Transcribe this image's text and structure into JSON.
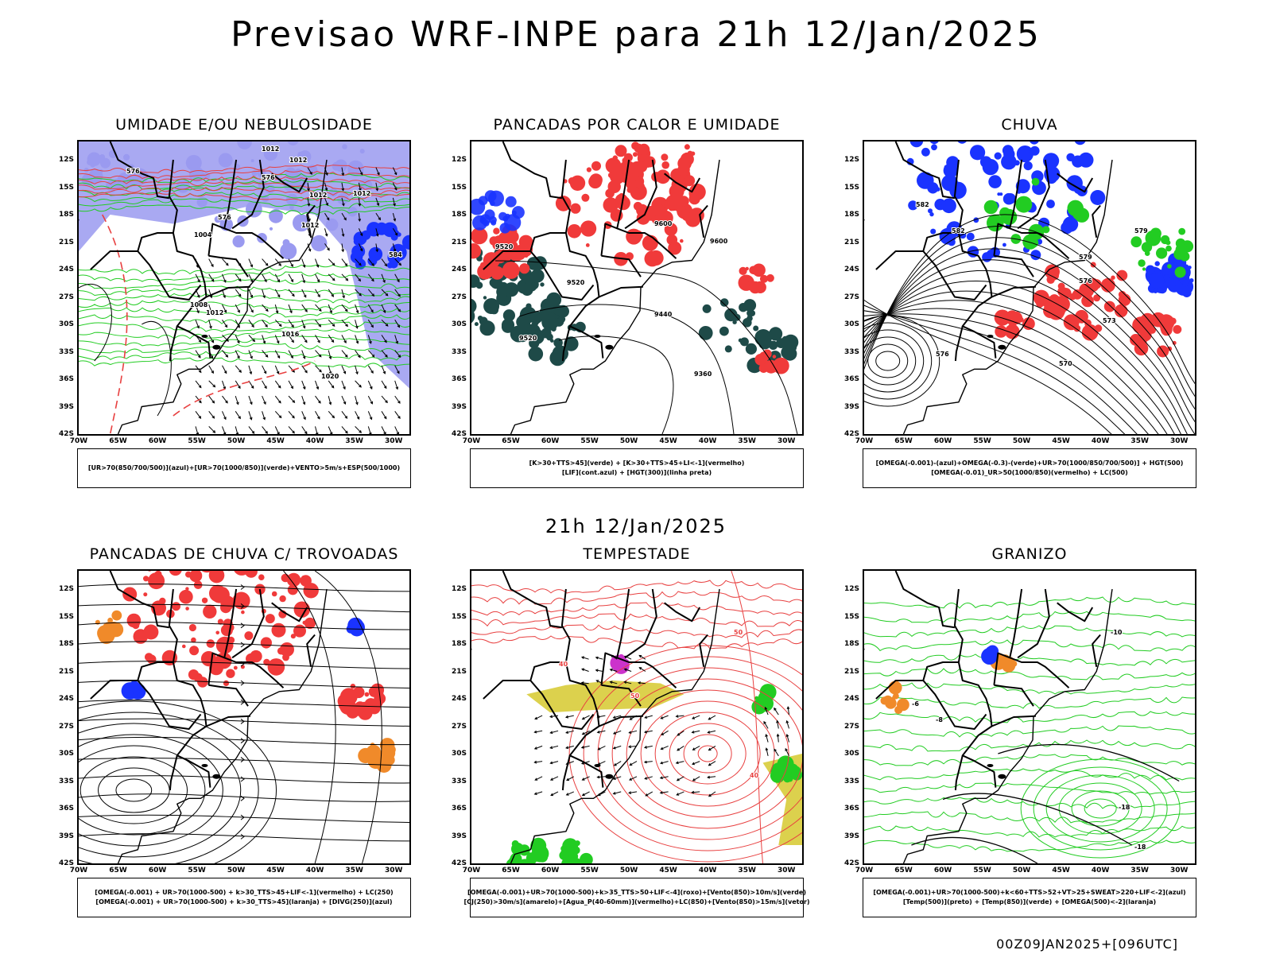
{
  "header": {
    "title": "Previsao WRF-INPE  para 21h 12/Jan/2025"
  },
  "mid_title": "21h 12/Jan/2025",
  "footer": {
    "run_code": "00Z09JAN2025+[096UTC]"
  },
  "axes": {
    "lat_labels": [
      "12S",
      "15S",
      "18S",
      "21S",
      "24S",
      "27S",
      "30S",
      "33S",
      "36S",
      "39S",
      "42S"
    ],
    "lon_labels": [
      "70W",
      "65W",
      "60W",
      "55W",
      "50W",
      "45W",
      "40W",
      "35W",
      "30W"
    ]
  },
  "panels": [
    {
      "id": "umidade",
      "title": "UMIDADE E/OU NEBULOSIDADE",
      "legend": [
        "[UR>70(850/700/500)](azul)+[UR>70(1000/850)](verde)+VENTO>5m/s+ESP(500/1000)"
      ],
      "contour_labels": [
        "1012",
        "1012",
        "1012",
        "1012",
        "1004",
        "1012",
        "1008",
        "1012",
        "1020",
        "1016",
        "576",
        "576",
        "576",
        "584"
      ]
    },
    {
      "id": "pancadas-calor",
      "title": "PANCADAS POR CALOR E UMIDADE",
      "legend": [
        "[K>30+TTS>45](verde) + [K>30+TTS>45+LI<-1](vermelho)",
        "[LIF](cont.azul) + [HGT(300)](linha preta)"
      ],
      "contour_labels": [
        "9600",
        "9600",
        "9520",
        "9520",
        "9440",
        "9360",
        "9520"
      ]
    },
    {
      "id": "chuva",
      "title": "CHUVA",
      "legend": [
        "[OMEGA(-0.001)-(azul)+OMEGA(-0.3)-(verde)+UR>70(1000/850/700/500)] + HGT(500)",
        "[OMEGA(-0.01)_UR>50(1000/850)(vermelho) + LC(500)"
      ],
      "contour_labels": [
        "582",
        "582",
        "579",
        "576",
        "573",
        "570",
        "576",
        "579"
      ]
    },
    {
      "id": "pancadas-trovoadas",
      "title": "PANCADAS DE CHUVA C/ TROVOADAS",
      "legend": [
        "[OMEGA(-0.001) + UR>70(1000-500) + k>30_TTS>45+LIF<-1](vermelho) + LC(250)",
        "[OMEGA(-0.001) + UR>70(1000-500) + k>30_TTS>45](laranja) + [DIVG(250)](azul)"
      ],
      "contour_labels": []
    },
    {
      "id": "tempestade",
      "title": "TEMPESTADE",
      "legend": [
        "[OMEGA(-0.001)+UR>70(1000-500)+k>35_TTS>50+LIF<-4](roxo)+[Vento(850)>10m/s](verde)",
        "[CJ(250)>30m/s](amarelo)+[Agua_P(40-60mm)](vermelho)+LC(850)+[Vento(850)>15m/s](vetor)"
      ],
      "contour_labels": [
        "50",
        "50",
        "40",
        "40"
      ]
    },
    {
      "id": "granizo",
      "title": "GRANIZO",
      "legend": [
        "[OMEGA(-0.001)+UR>70(1000-500)+k<60+TTS>52+VT>25+SWEAT>220+LIF<-2](azul)",
        "[Temp(500)](preto) + [Temp(850)](verde) + [OMEGA(500)<-2](laranja)"
      ],
      "contour_labels": [
        "-6",
        "-8",
        "-10",
        "-18",
        "-18"
      ]
    }
  ],
  "colors": {
    "blue": "#1a33ff",
    "light_blue": "#9a9af0",
    "green": "#22cc22",
    "red": "#f03a3a",
    "dark_teal": "#1e4a48",
    "yellow": "#d8cc3a",
    "orange": "#f08a2a",
    "purple": "#cc33cc",
    "black": "#000000"
  }
}
